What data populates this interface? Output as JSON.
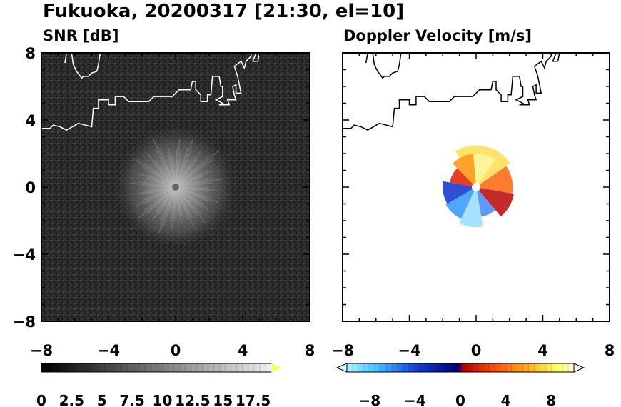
{
  "figure": {
    "title": "Fukuoka, 20200317 [21:30, el=10]"
  },
  "chart_data": [
    {
      "type": "heatmap",
      "subtitle": "SNR [dB]",
      "xlabel": "",
      "ylabel": "",
      "xlim": [
        -8,
        8
      ],
      "ylim": [
        -8,
        8
      ],
      "x_ticks": [
        "−8",
        "−4",
        "0",
        "4",
        "8"
      ],
      "y_ticks": [
        "8",
        "4",
        "0",
        "−4",
        "−8"
      ],
      "x_tick_values": [
        -8,
        -4,
        0,
        4,
        8
      ],
      "y_tick_values": [
        8,
        4,
        0,
        -4,
        -8
      ],
      "background_color": "#2b2b2b",
      "coastline_color": "#ffffff",
      "colorbar": {
        "colormap": "grayscale",
        "range": [
          0,
          19
        ],
        "tick_labels": [
          "0",
          "2.5",
          "5",
          "7.5",
          "10",
          "12.5",
          "15",
          "17.5"
        ],
        "tick_values": [
          0,
          2.5,
          5,
          7.5,
          10,
          12.5,
          15,
          17.5
        ],
        "extend": "max",
        "extend_color": "#ffff60"
      }
    },
    {
      "type": "heatmap",
      "subtitle": "Doppler Velocity [m/s]",
      "xlabel": "",
      "ylabel": "",
      "xlim": [
        -8,
        8
      ],
      "ylim": [
        -8,
        8
      ],
      "x_ticks": [
        "−8",
        "−4",
        "0",
        "4",
        "8"
      ],
      "y_ticks": [],
      "x_tick_values": [
        -8,
        -4,
        0,
        4,
        8
      ],
      "background_color": "#ffffff",
      "coastline_color": "#000000",
      "colorbar": {
        "colormap": "diverging-cyan-blue-red-yellow",
        "range": [
          -10,
          10
        ],
        "tick_labels": [
          "−8",
          "−4",
          "0",
          "4",
          "8"
        ],
        "tick_values": [
          -8,
          -4,
          0,
          4,
          8
        ],
        "extend": "both",
        "extend_low_color": "#d8ffff",
        "extend_high_color": "#ffffe0"
      }
    }
  ],
  "coastline": [
    [
      [
        -8,
        3.5
      ],
      [
        -7.5,
        3.5
      ],
      [
        -7.3,
        3.7
      ],
      [
        -6.9,
        3.6
      ],
      [
        -6.5,
        3.4
      ],
      [
        -5.8,
        3.8
      ],
      [
        -5.0,
        3.6
      ],
      [
        -4.9,
        4.7
      ],
      [
        -4.6,
        4.7
      ],
      [
        -4.6,
        5.2
      ],
      [
        -4.0,
        5.2
      ],
      [
        -4.0,
        4.9
      ],
      [
        -3.6,
        4.9
      ],
      [
        -3.6,
        5.4
      ],
      [
        -3.1,
        5.4
      ],
      [
        -2.8,
        5.1
      ],
      [
        -1.6,
        5.1
      ],
      [
        -1.3,
        5.4
      ],
      [
        -0.2,
        5.4
      ],
      [
        0.2,
        5.8
      ],
      [
        0.9,
        5.8
      ],
      [
        1.0,
        6.3
      ],
      [
        1.2,
        6.3
      ],
      [
        1.2,
        5.8
      ],
      [
        1.5,
        5.5
      ],
      [
        1.5,
        5.1
      ],
      [
        1.9,
        5.1
      ],
      [
        1.9,
        5.5
      ],
      [
        2.1,
        5.5
      ],
      [
        2.2,
        6.6
      ],
      [
        2.6,
        6.6
      ],
      [
        2.7,
        6.0
      ],
      [
        2.8,
        6.0
      ],
      [
        2.8,
        5.4
      ],
      [
        2.4,
        5.2
      ],
      [
        2.8,
        5.0
      ],
      [
        2.6,
        4.9
      ],
      [
        3.2,
        4.9
      ],
      [
        3.1,
        5.2
      ],
      [
        3.6,
        5.2
      ],
      [
        3.5,
        5.5
      ],
      [
        3.4,
        6.0
      ],
      [
        3.6,
        6.1
      ],
      [
        3.6,
        5.6
      ],
      [
        3.9,
        5.6
      ],
      [
        3.7,
        6.6
      ],
      [
        3.5,
        7.2
      ],
      [
        3.9,
        7.5
      ],
      [
        4.1,
        7.1
      ],
      [
        4.2,
        7.5
      ],
      [
        4.5,
        7.8
      ],
      [
        4.5,
        8.0
      ],
      [
        4.8,
        8.0
      ],
      [
        4.6,
        7.5
      ],
      [
        4.9,
        7.5
      ],
      [
        5.0,
        8.0
      ],
      [
        4.6,
        8.0
      ]
    ],
    [
      [
        -6.6,
        7.4
      ],
      [
        -6.5,
        8.0
      ],
      [
        -6.2,
        8.0
      ],
      [
        -6.1,
        7.3
      ],
      [
        -5.9,
        6.9
      ],
      [
        -5.6,
        6.5
      ],
      [
        -5.5,
        6.6
      ],
      [
        -5.2,
        6.6
      ],
      [
        -5.0,
        6.8
      ],
      [
        -4.7,
        6.9
      ],
      [
        -4.6,
        7.3
      ],
      [
        -4.5,
        8.0
      ]
    ]
  ],
  "snr_rays": [
    {
      "angle_deg": 10,
      "length_km": 2.8
    },
    {
      "angle_deg": 25,
      "length_km": 2.3
    },
    {
      "angle_deg": 40,
      "length_km": 3.4
    },
    {
      "angle_deg": 55,
      "length_km": 2.6
    },
    {
      "angle_deg": 70,
      "length_km": 3.1
    },
    {
      "angle_deg": 85,
      "length_km": 2.9
    },
    {
      "angle_deg": 100,
      "length_km": 2.4
    },
    {
      "angle_deg": 115,
      "length_km": 3.2
    },
    {
      "angle_deg": 130,
      "length_km": 2.5
    },
    {
      "angle_deg": 145,
      "length_km": 2.9
    },
    {
      "angle_deg": 160,
      "length_km": 2.3
    },
    {
      "angle_deg": 175,
      "length_km": 2.7
    },
    {
      "angle_deg": 190,
      "length_km": 2.2
    },
    {
      "angle_deg": 205,
      "length_km": 2.6
    },
    {
      "angle_deg": 220,
      "length_km": 2.9
    },
    {
      "angle_deg": 235,
      "length_km": 2.4
    },
    {
      "angle_deg": 250,
      "length_km": 3.0
    },
    {
      "angle_deg": 265,
      "length_km": 2.5
    },
    {
      "angle_deg": 280,
      "length_km": 2.2
    },
    {
      "angle_deg": 295,
      "length_km": 2.6
    },
    {
      "angle_deg": 310,
      "length_km": 2.8
    },
    {
      "angle_deg": 325,
      "length_km": 2.4
    },
    {
      "angle_deg": 340,
      "length_km": 2.7
    },
    {
      "angle_deg": 355,
      "length_km": 2.5
    }
  ],
  "doppler_sectors": [
    {
      "from_deg": 35,
      "to_deg": 120,
      "radius_km": 2.5,
      "color": "#ffe060"
    },
    {
      "from_deg": 55,
      "to_deg": 95,
      "radius_km": 2.0,
      "color": "#fff4a0"
    },
    {
      "from_deg": 95,
      "to_deg": 135,
      "radius_km": 2.0,
      "color": "#ff9c20"
    },
    {
      "from_deg": 135,
      "to_deg": 170,
      "radius_km": 1.6,
      "color": "#e03010"
    },
    {
      "from_deg": 170,
      "to_deg": 210,
      "radius_km": 2.0,
      "color": "#2040d0"
    },
    {
      "from_deg": 210,
      "to_deg": 245,
      "radius_km": 2.1,
      "color": "#40a0ff"
    },
    {
      "from_deg": 245,
      "to_deg": 280,
      "radius_km": 2.4,
      "color": "#a0e0ff"
    },
    {
      "from_deg": 280,
      "to_deg": 310,
      "radius_km": 1.8,
      "color": "#5090ff"
    },
    {
      "from_deg": 310,
      "to_deg": 350,
      "radius_km": 2.3,
      "color": "#c01818"
    },
    {
      "from_deg": 350,
      "to_deg": 395,
      "radius_km": 2.2,
      "color": "#ff7020"
    }
  ]
}
